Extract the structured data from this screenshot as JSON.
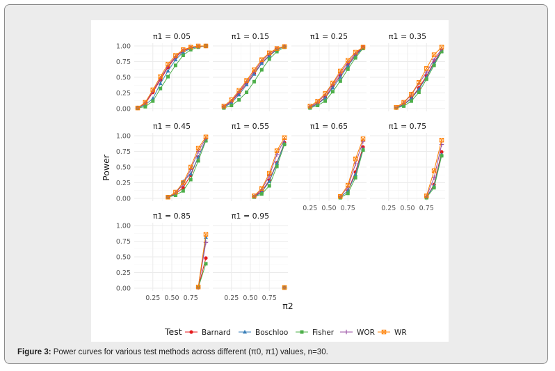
{
  "figure": {
    "caption_label": "Figure 3:",
    "caption_text": "Power curves for various test methods across different (π0, π1) values, n=30."
  },
  "colors": {
    "grid": "#ebebeb",
    "Barnard": "#e41a1c",
    "Boschloo": "#377eb8",
    "Fisher": "#4daf4a",
    "WOR": "#984ea3",
    "WR": "#ff7f00"
  },
  "chart_data": {
    "type": "line",
    "ylabel": "Power",
    "xlabel": "π2",
    "xlim": [
      0,
      1
    ],
    "ylim": [
      0,
      1
    ],
    "xticks": [
      "0.25",
      "0.50",
      "0.75"
    ],
    "yticks": [
      "0.00",
      "0.25",
      "0.50",
      "0.75",
      "1.00"
    ],
    "legend_title": "Test",
    "legend_position": "bottom",
    "series_names": [
      "Barnard",
      "Boschloo",
      "Fisher",
      "WOR",
      "WR"
    ],
    "panels": [
      {
        "title": "π1 = 0.05",
        "x": [
          0.05,
          0.15,
          0.25,
          0.35,
          0.45,
          0.55,
          0.65,
          0.75,
          0.85,
          0.95
        ],
        "series": [
          {
            "name": "Barnard",
            "values": [
              0.01,
              0.08,
              0.26,
              0.46,
              0.66,
              0.82,
              0.92,
              0.97,
              0.99,
              1.0
            ]
          },
          {
            "name": "Boschloo",
            "values": [
              0.01,
              0.06,
              0.16,
              0.4,
              0.6,
              0.78,
              0.9,
              0.96,
              0.99,
              1.0
            ]
          },
          {
            "name": "Fisher",
            "values": [
              0.01,
              0.03,
              0.12,
              0.32,
              0.51,
              0.69,
              0.85,
              0.94,
              0.98,
              1.0
            ]
          },
          {
            "name": "WOR",
            "values": [
              0.01,
              0.09,
              0.28,
              0.48,
              0.68,
              0.83,
              0.93,
              0.98,
              0.99,
              1.0
            ]
          },
          {
            "name": "WR",
            "values": [
              0.01,
              0.1,
              0.3,
              0.51,
              0.71,
              0.85,
              0.94,
              0.98,
              1.0,
              1.0
            ]
          }
        ]
      },
      {
        "title": "π1 = 0.15",
        "x": [
          0.15,
          0.25,
          0.35,
          0.45,
          0.55,
          0.65,
          0.75,
          0.85,
          0.95
        ],
        "series": [
          {
            "name": "Barnard",
            "values": [
              0.03,
              0.11,
              0.25,
              0.4,
              0.56,
              0.73,
              0.85,
              0.95,
              0.99
            ]
          },
          {
            "name": "Boschloo",
            "values": [
              0.02,
              0.09,
              0.22,
              0.38,
              0.55,
              0.72,
              0.84,
              0.94,
              0.99
            ]
          },
          {
            "name": "Fisher",
            "values": [
              0.01,
              0.05,
              0.14,
              0.26,
              0.43,
              0.62,
              0.79,
              0.91,
              0.98
            ]
          },
          {
            "name": "WOR",
            "values": [
              0.03,
              0.12,
              0.27,
              0.43,
              0.59,
              0.76,
              0.88,
              0.96,
              0.99
            ]
          },
          {
            "name": "WR",
            "values": [
              0.04,
              0.14,
              0.29,
              0.45,
              0.62,
              0.78,
              0.89,
              0.96,
              0.99
            ]
          }
        ]
      },
      {
        "title": "π1 = 0.25",
        "x": [
          0.25,
          0.35,
          0.45,
          0.55,
          0.65,
          0.75,
          0.85,
          0.95
        ],
        "series": [
          {
            "name": "Barnard",
            "values": [
              0.02,
              0.08,
              0.18,
              0.36,
              0.53,
              0.7,
              0.86,
              0.98
            ]
          },
          {
            "name": "Boschloo",
            "values": [
              0.02,
              0.07,
              0.17,
              0.33,
              0.5,
              0.68,
              0.84,
              0.97
            ]
          },
          {
            "name": "Fisher",
            "values": [
              0.01,
              0.05,
              0.12,
              0.27,
              0.44,
              0.63,
              0.81,
              0.96
            ]
          },
          {
            "name": "WOR",
            "values": [
              0.03,
              0.1,
              0.22,
              0.39,
              0.57,
              0.74,
              0.88,
              0.98
            ]
          },
          {
            "name": "WR",
            "values": [
              0.04,
              0.12,
              0.24,
              0.41,
              0.6,
              0.77,
              0.9,
              0.98
            ]
          }
        ]
      },
      {
        "title": "π1 = 0.35",
        "x": [
          0.35,
          0.45,
          0.55,
          0.65,
          0.75,
          0.85,
          0.95
        ],
        "series": [
          {
            "name": "Barnard",
            "values": [
              0.01,
              0.07,
              0.17,
              0.33,
              0.52,
              0.74,
              0.93
            ]
          },
          {
            "name": "Boschloo",
            "values": [
              0.01,
              0.06,
              0.16,
              0.31,
              0.5,
              0.72,
              0.92
            ]
          },
          {
            "name": "Fisher",
            "values": [
              0.01,
              0.04,
              0.12,
              0.26,
              0.47,
              0.69,
              0.91
            ]
          },
          {
            "name": "WOR",
            "values": [
              0.02,
              0.09,
              0.22,
              0.4,
              0.58,
              0.78,
              0.95
            ]
          },
          {
            "name": "WR",
            "values": [
              0.02,
              0.1,
              0.23,
              0.42,
              0.64,
              0.86,
              0.98
            ]
          }
        ]
      },
      {
        "title": "π1 = 0.45",
        "x": [
          0.45,
          0.55,
          0.65,
          0.75,
          0.85,
          0.95
        ],
        "series": [
          {
            "name": "Barnard",
            "values": [
              0.02,
              0.07,
              0.17,
              0.37,
              0.66,
              0.94
            ]
          },
          {
            "name": "Boschloo",
            "values": [
              0.02,
              0.06,
              0.27,
              0.39,
              0.66,
              0.93
            ]
          },
          {
            "name": "Fisher",
            "values": [
              0.02,
              0.05,
              0.12,
              0.3,
              0.6,
              0.92
            ]
          },
          {
            "name": "WOR",
            "values": [
              0.02,
              0.09,
              0.22,
              0.46,
              0.75,
              0.96
            ]
          },
          {
            "name": "WR",
            "values": [
              0.02,
              0.1,
              0.25,
              0.5,
              0.8,
              0.98
            ]
          }
        ]
      },
      {
        "title": "π1 = 0.55",
        "x": [
          0.55,
          0.65,
          0.75,
          0.85,
          0.95
        ],
        "series": [
          {
            "name": "Barnard",
            "values": [
              0.03,
              0.11,
              0.29,
              0.57,
              0.89
            ]
          },
          {
            "name": "Boschloo",
            "values": [
              0.02,
              0.1,
              0.27,
              0.56,
              0.88
            ]
          },
          {
            "name": "Fisher",
            "values": [
              0.02,
              0.07,
              0.2,
              0.51,
              0.86
            ]
          },
          {
            "name": "WOR",
            "values": [
              0.03,
              0.14,
              0.36,
              0.7,
              0.94
            ]
          },
          {
            "name": "WR",
            "values": [
              0.04,
              0.16,
              0.4,
              0.76,
              0.97
            ]
          }
        ]
      },
      {
        "title": "π1 = 0.65",
        "x": [
          0.65,
          0.75,
          0.85,
          0.95
        ],
        "series": [
          {
            "name": "Barnard",
            "values": [
              0.02,
              0.12,
              0.42,
              0.82
            ]
          },
          {
            "name": "Boschloo",
            "values": [
              0.02,
              0.12,
              0.38,
              0.79
            ]
          },
          {
            "name": "Fisher",
            "values": [
              0.01,
              0.08,
              0.33,
              0.77
            ]
          },
          {
            "name": "WOR",
            "values": [
              0.03,
              0.18,
              0.55,
              0.91
            ]
          },
          {
            "name": "WR",
            "values": [
              0.03,
              0.21,
              0.63,
              0.95
            ]
          }
        ]
      },
      {
        "title": "π1 = 0.75",
        "x": [
          0.75,
          0.85,
          0.95
        ],
        "series": [
          {
            "name": "Barnard",
            "values": [
              0.02,
              0.22,
              0.74
            ]
          },
          {
            "name": "Boschloo",
            "values": [
              0.02,
              0.2,
              0.7
            ]
          },
          {
            "name": "Fisher",
            "values": [
              0.01,
              0.17,
              0.68
            ]
          },
          {
            "name": "WOR",
            "values": [
              0.03,
              0.33,
              0.86
            ]
          },
          {
            "name": "WR",
            "values": [
              0.04,
              0.44,
              0.93
            ]
          }
        ]
      },
      {
        "title": "π1 = 0.85",
        "x": [
          0.85,
          0.95
        ],
        "series": [
          {
            "name": "Barnard",
            "values": [
              0.01,
              0.48
            ]
          },
          {
            "name": "Boschloo",
            "values": [
              0.01,
              0.81
            ]
          },
          {
            "name": "Fisher",
            "values": [
              0.01,
              0.39
            ]
          },
          {
            "name": "WOR",
            "values": [
              0.01,
              0.73
            ]
          },
          {
            "name": "WR",
            "values": [
              0.02,
              0.86
            ]
          }
        ]
      },
      {
        "title": "π1 = 0.95",
        "x": [
          0.95
        ],
        "series": [
          {
            "name": "Barnard",
            "values": [
              0.01
            ]
          },
          {
            "name": "Boschloo",
            "values": [
              0.01
            ]
          },
          {
            "name": "Fisher",
            "values": [
              0.01
            ]
          },
          {
            "name": "WOR",
            "values": [
              0.01
            ]
          },
          {
            "name": "WR",
            "values": [
              0.01
            ]
          }
        ]
      }
    ]
  }
}
